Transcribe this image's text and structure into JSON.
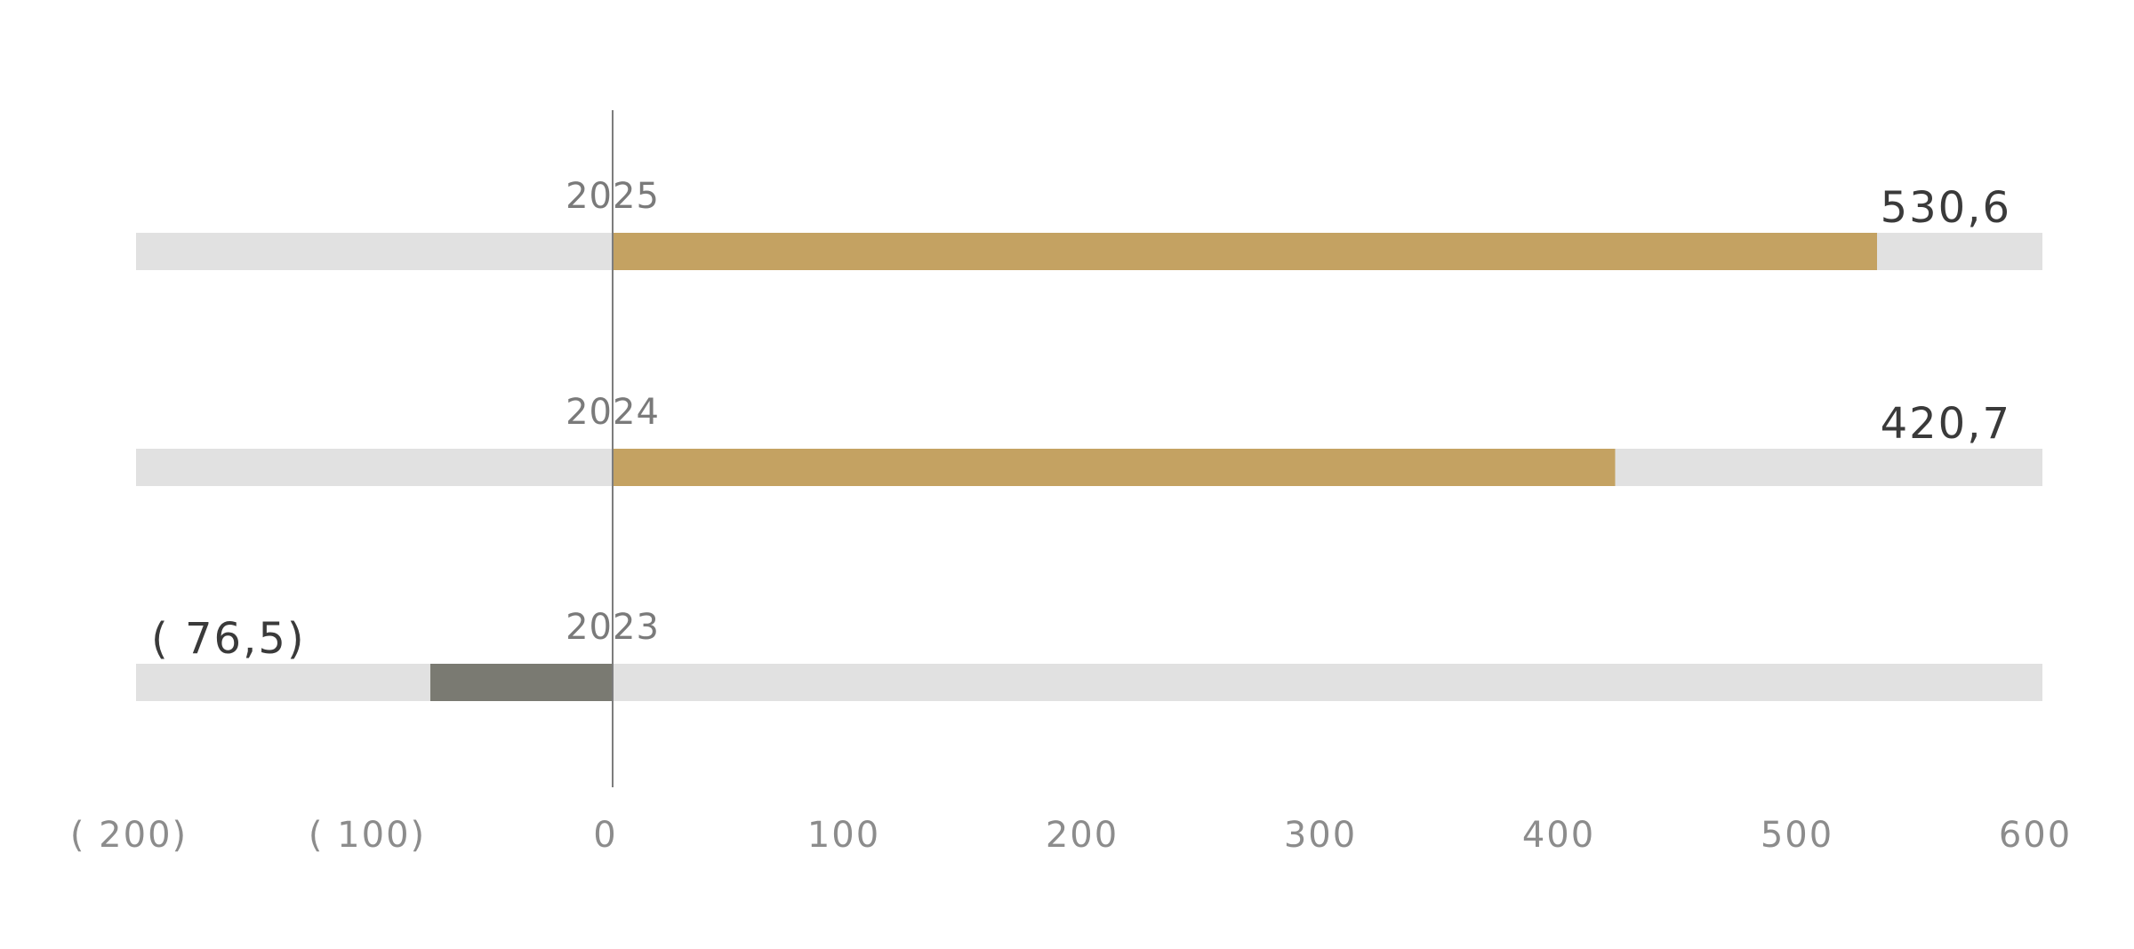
{
  "chart_data": {
    "type": "bar",
    "orientation": "horizontal",
    "categories": [
      "2025",
      "2024",
      "2023"
    ],
    "values": [
      530.6,
      420.7,
      -76.5
    ],
    "value_labels": [
      "530,6",
      "420,7",
      "( 76,5)"
    ],
    "xlim": [
      -200,
      600
    ],
    "xticks": [
      -200,
      -100,
      0,
      100,
      200,
      300,
      400,
      500,
      600
    ],
    "xtick_labels": [
      "( 200)",
      "( 100)",
      "0",
      "100",
      "200",
      "300",
      "400",
      "500",
      "600"
    ],
    "grid": false,
    "legend": "none",
    "colors": {
      "positive": "#c4a262",
      "negative": "#7a7a72",
      "track": "#e1e1e1",
      "zero_line": "#7d7d7d"
    }
  }
}
